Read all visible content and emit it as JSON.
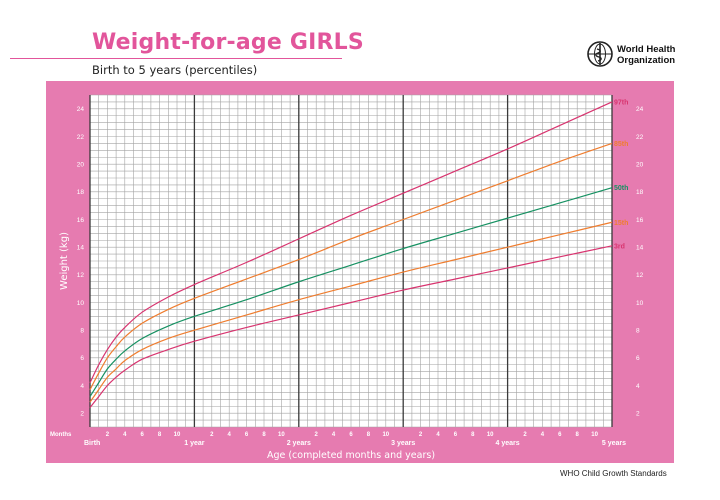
{
  "header": {
    "title": "Weight-for-age GIRLS",
    "subtitle": "Birth to 5 years (percentiles)",
    "org_name_line1": "World Health",
    "org_name_line2": "Organization",
    "logo_icon": "who-emblem-icon"
  },
  "footer": {
    "text": "WHO Child Growth Standards"
  },
  "colors": {
    "brand_pink": "#e2559b",
    "frame_pink": "#e67bb0",
    "grid": "#a3a3a3",
    "year_line": "#3a3a3a",
    "p97": "#d8346f",
    "p85": "#ef7d2f",
    "p50": "#169162",
    "p15": "#ef7d2f",
    "p3": "#d8346f"
  },
  "chart_data": {
    "type": "line",
    "title": "Weight-for-age GIRLS",
    "subtitle": "Birth to 5 years (percentiles)",
    "xlabel": "Age (completed months and years)",
    "ylabel": "Weight (kg)",
    "x_unit_label": "Months",
    "xlim": [
      0,
      60
    ],
    "ylim": [
      1,
      25
    ],
    "y_ticks": [
      2,
      4,
      6,
      8,
      10,
      12,
      14,
      16,
      18,
      20,
      22,
      24
    ],
    "month_tick_labels": [
      "2",
      "4",
      "6",
      "8",
      "10"
    ],
    "year_labels": [
      {
        "month": 0,
        "label": "Birth"
      },
      {
        "month": 12,
        "label": "1 year"
      },
      {
        "month": 24,
        "label": "2 years"
      },
      {
        "month": 36,
        "label": "3 years"
      },
      {
        "month": 48,
        "label": "4 years"
      },
      {
        "month": 60,
        "label": "5 years"
      }
    ],
    "grid": true,
    "x": [
      0,
      1,
      2,
      3,
      4,
      6,
      9,
      12,
      18,
      24,
      30,
      36,
      42,
      48,
      54,
      60
    ],
    "series": [
      {
        "name": "97th",
        "color_key": "p97",
        "values": [
          4.2,
          5.5,
          6.6,
          7.5,
          8.2,
          9.3,
          10.4,
          11.3,
          12.9,
          14.6,
          16.3,
          17.9,
          19.5,
          21.1,
          22.8,
          24.5
        ]
      },
      {
        "name": "85th",
        "color_key": "p85",
        "values": [
          3.7,
          4.9,
          6.0,
          6.8,
          7.5,
          8.5,
          9.5,
          10.3,
          11.7,
          13.1,
          14.6,
          16.0,
          17.4,
          18.8,
          20.2,
          21.5
        ]
      },
      {
        "name": "50th",
        "color_key": "p50",
        "values": [
          3.2,
          4.2,
          5.2,
          5.9,
          6.5,
          7.4,
          8.3,
          9.0,
          10.2,
          11.5,
          12.7,
          13.9,
          15.0,
          16.1,
          17.2,
          18.3
        ]
      },
      {
        "name": "15th",
        "color_key": "p15",
        "values": [
          2.8,
          3.7,
          4.6,
          5.2,
          5.8,
          6.6,
          7.4,
          8.0,
          9.1,
          10.2,
          11.2,
          12.2,
          13.1,
          14.0,
          14.9,
          15.8
        ]
      },
      {
        "name": "3rd",
        "color_key": "p3",
        "values": [
          2.4,
          3.2,
          4.0,
          4.6,
          5.1,
          5.9,
          6.6,
          7.2,
          8.2,
          9.1,
          10.0,
          10.9,
          11.7,
          12.5,
          13.3,
          14.1
        ]
      }
    ]
  }
}
